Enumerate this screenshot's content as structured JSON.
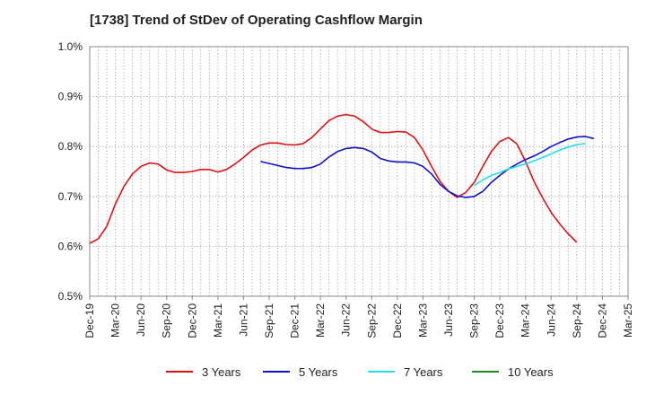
{
  "chart_data": {
    "type": "line",
    "title": "[1738]  Trend of StDev of Operating Cashflow Margin",
    "xlabel": "",
    "ylabel": "",
    "ylim": [
      0.5,
      1.0
    ],
    "yticks": [
      {
        "value": 0.5,
        "label": "0.5%"
      },
      {
        "value": 0.6,
        "label": "0.6%"
      },
      {
        "value": 0.7,
        "label": "0.7%"
      },
      {
        "value": 0.8,
        "label": "0.8%"
      },
      {
        "value": 0.9,
        "label": "0.9%"
      },
      {
        "value": 1.0,
        "label": "1.0%"
      }
    ],
    "x_range": [
      "2019-12",
      "2025-03"
    ],
    "xticks": [
      "Dec-19",
      "Mar-20",
      "Jun-20",
      "Sep-20",
      "Dec-20",
      "Mar-21",
      "Jun-21",
      "Sep-21",
      "Dec-21",
      "Mar-22",
      "Jun-22",
      "Sep-22",
      "Dec-22",
      "Mar-23",
      "Jun-23",
      "Sep-23",
      "Dec-23",
      "Mar-24",
      "Jun-24",
      "Sep-24",
      "Dec-24",
      "Mar-25"
    ],
    "grid": true,
    "legend_position": "bottom",
    "series": [
      {
        "name": "3 Years",
        "color": "#dd1111",
        "start": "2019-12",
        "values": [
          0.606,
          0.615,
          0.64,
          0.685,
          0.72,
          0.745,
          0.76,
          0.767,
          0.765,
          0.753,
          0.748,
          0.748,
          0.75,
          0.754,
          0.754,
          0.749,
          0.754,
          0.765,
          0.778,
          0.793,
          0.803,
          0.807,
          0.807,
          0.804,
          0.803,
          0.806,
          0.818,
          0.835,
          0.852,
          0.861,
          0.864,
          0.861,
          0.85,
          0.835,
          0.828,
          0.828,
          0.83,
          0.829,
          0.818,
          0.793,
          0.76,
          0.73,
          0.71,
          0.698,
          0.708,
          0.728,
          0.76,
          0.79,
          0.81,
          0.818,
          0.805,
          0.77,
          0.73,
          0.697,
          0.668,
          0.645,
          0.625,
          0.608
        ]
      },
      {
        "name": "5 Years",
        "color": "#1111cc",
        "start": "2021-08",
        "values": [
          0.77,
          0.766,
          0.762,
          0.758,
          0.756,
          0.756,
          0.758,
          0.765,
          0.779,
          0.79,
          0.796,
          0.798,
          0.796,
          0.789,
          0.776,
          0.771,
          0.769,
          0.769,
          0.767,
          0.76,
          0.745,
          0.724,
          0.71,
          0.701,
          0.698,
          0.7,
          0.71,
          0.728,
          0.742,
          0.755,
          0.765,
          0.774,
          0.781,
          0.79,
          0.8,
          0.808,
          0.815,
          0.819,
          0.82,
          0.816
        ]
      },
      {
        "name": "7 Years",
        "color": "#22ddee",
        "start": "2023-09",
        "values": [
          0.722,
          0.733,
          0.742,
          0.748,
          0.755,
          0.76,
          0.765,
          0.771,
          0.778,
          0.785,
          0.793,
          0.799,
          0.804,
          0.806
        ]
      },
      {
        "name": "10 Years",
        "color": "#228822",
        "start": "2023-09",
        "values": []
      }
    ]
  }
}
